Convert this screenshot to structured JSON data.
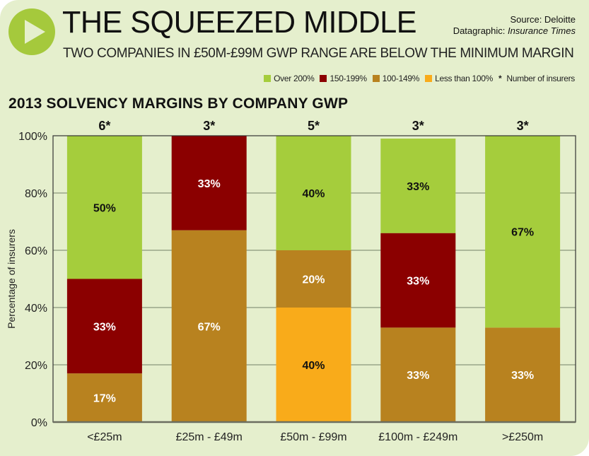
{
  "header": {
    "title": "THE SQUEEZED MIDDLE",
    "subtitle": "TWO COMPANIES IN £50M-£99M GWP RANGE ARE BELOW THE MINIMUM MARGIN",
    "source_line": "Source: Deloitte",
    "datagraphic_prefix": "Datagraphic: ",
    "datagraphic_name": "Insurance Times",
    "logo_icon": "play-icon"
  },
  "legend": {
    "items": [
      {
        "label": "Over 200%",
        "color": "#a5cd3c"
      },
      {
        "label": "150-199%",
        "color": "#8b0000"
      },
      {
        "label": "100-149%",
        "color": "#b8821f"
      },
      {
        "label": "Less than 100%",
        "color": "#f9ab1a"
      }
    ],
    "note_symbol": "*",
    "note_label": "Number of insurers"
  },
  "chart_data": {
    "type": "bar",
    "stacked": true,
    "title": "2013 SOLVENCY MARGINS BY COMPANY GWP",
    "xlabel": "",
    "ylabel": "Percentage of insurers",
    "ylim": [
      0,
      100
    ],
    "yticks": [
      0,
      20,
      40,
      60,
      80,
      100
    ],
    "ytick_labels": [
      "0%",
      "20%",
      "40%",
      "60%",
      "80%",
      "100%"
    ],
    "grid": true,
    "legend_position": "top-right",
    "categories": [
      "<£25m",
      "£25m - £49m",
      "£50m - £99m",
      "£100m - £249m",
      ">£250m"
    ],
    "insurer_counts": [
      "6*",
      "3*",
      "5*",
      "3*",
      "3*"
    ],
    "series": [
      {
        "name": "Less than 100%",
        "color": "#f9ab1a",
        "label_color": "#111111",
        "values": [
          0,
          0,
          40,
          0,
          0
        ],
        "labels": [
          "",
          "",
          "40%",
          "",
          ""
        ]
      },
      {
        "name": "100-149%",
        "color": "#b8821f",
        "label_color": "#ffffff",
        "values": [
          17,
          67,
          20,
          33,
          33
        ],
        "labels": [
          "17%",
          "67%",
          "20%",
          "33%",
          "33%"
        ]
      },
      {
        "name": "150-199%",
        "color": "#8b0000",
        "label_color": "#ffffff",
        "values": [
          33,
          33,
          0,
          33,
          0
        ],
        "labels": [
          "33%",
          "33%",
          "",
          "33%",
          ""
        ]
      },
      {
        "name": "Over 200%",
        "color": "#a5cd3c",
        "label_color": "#111111",
        "values": [
          50,
          0,
          40,
          33,
          67
        ],
        "labels": [
          "50%",
          "",
          "40%",
          "33%",
          "67%"
        ]
      }
    ]
  }
}
